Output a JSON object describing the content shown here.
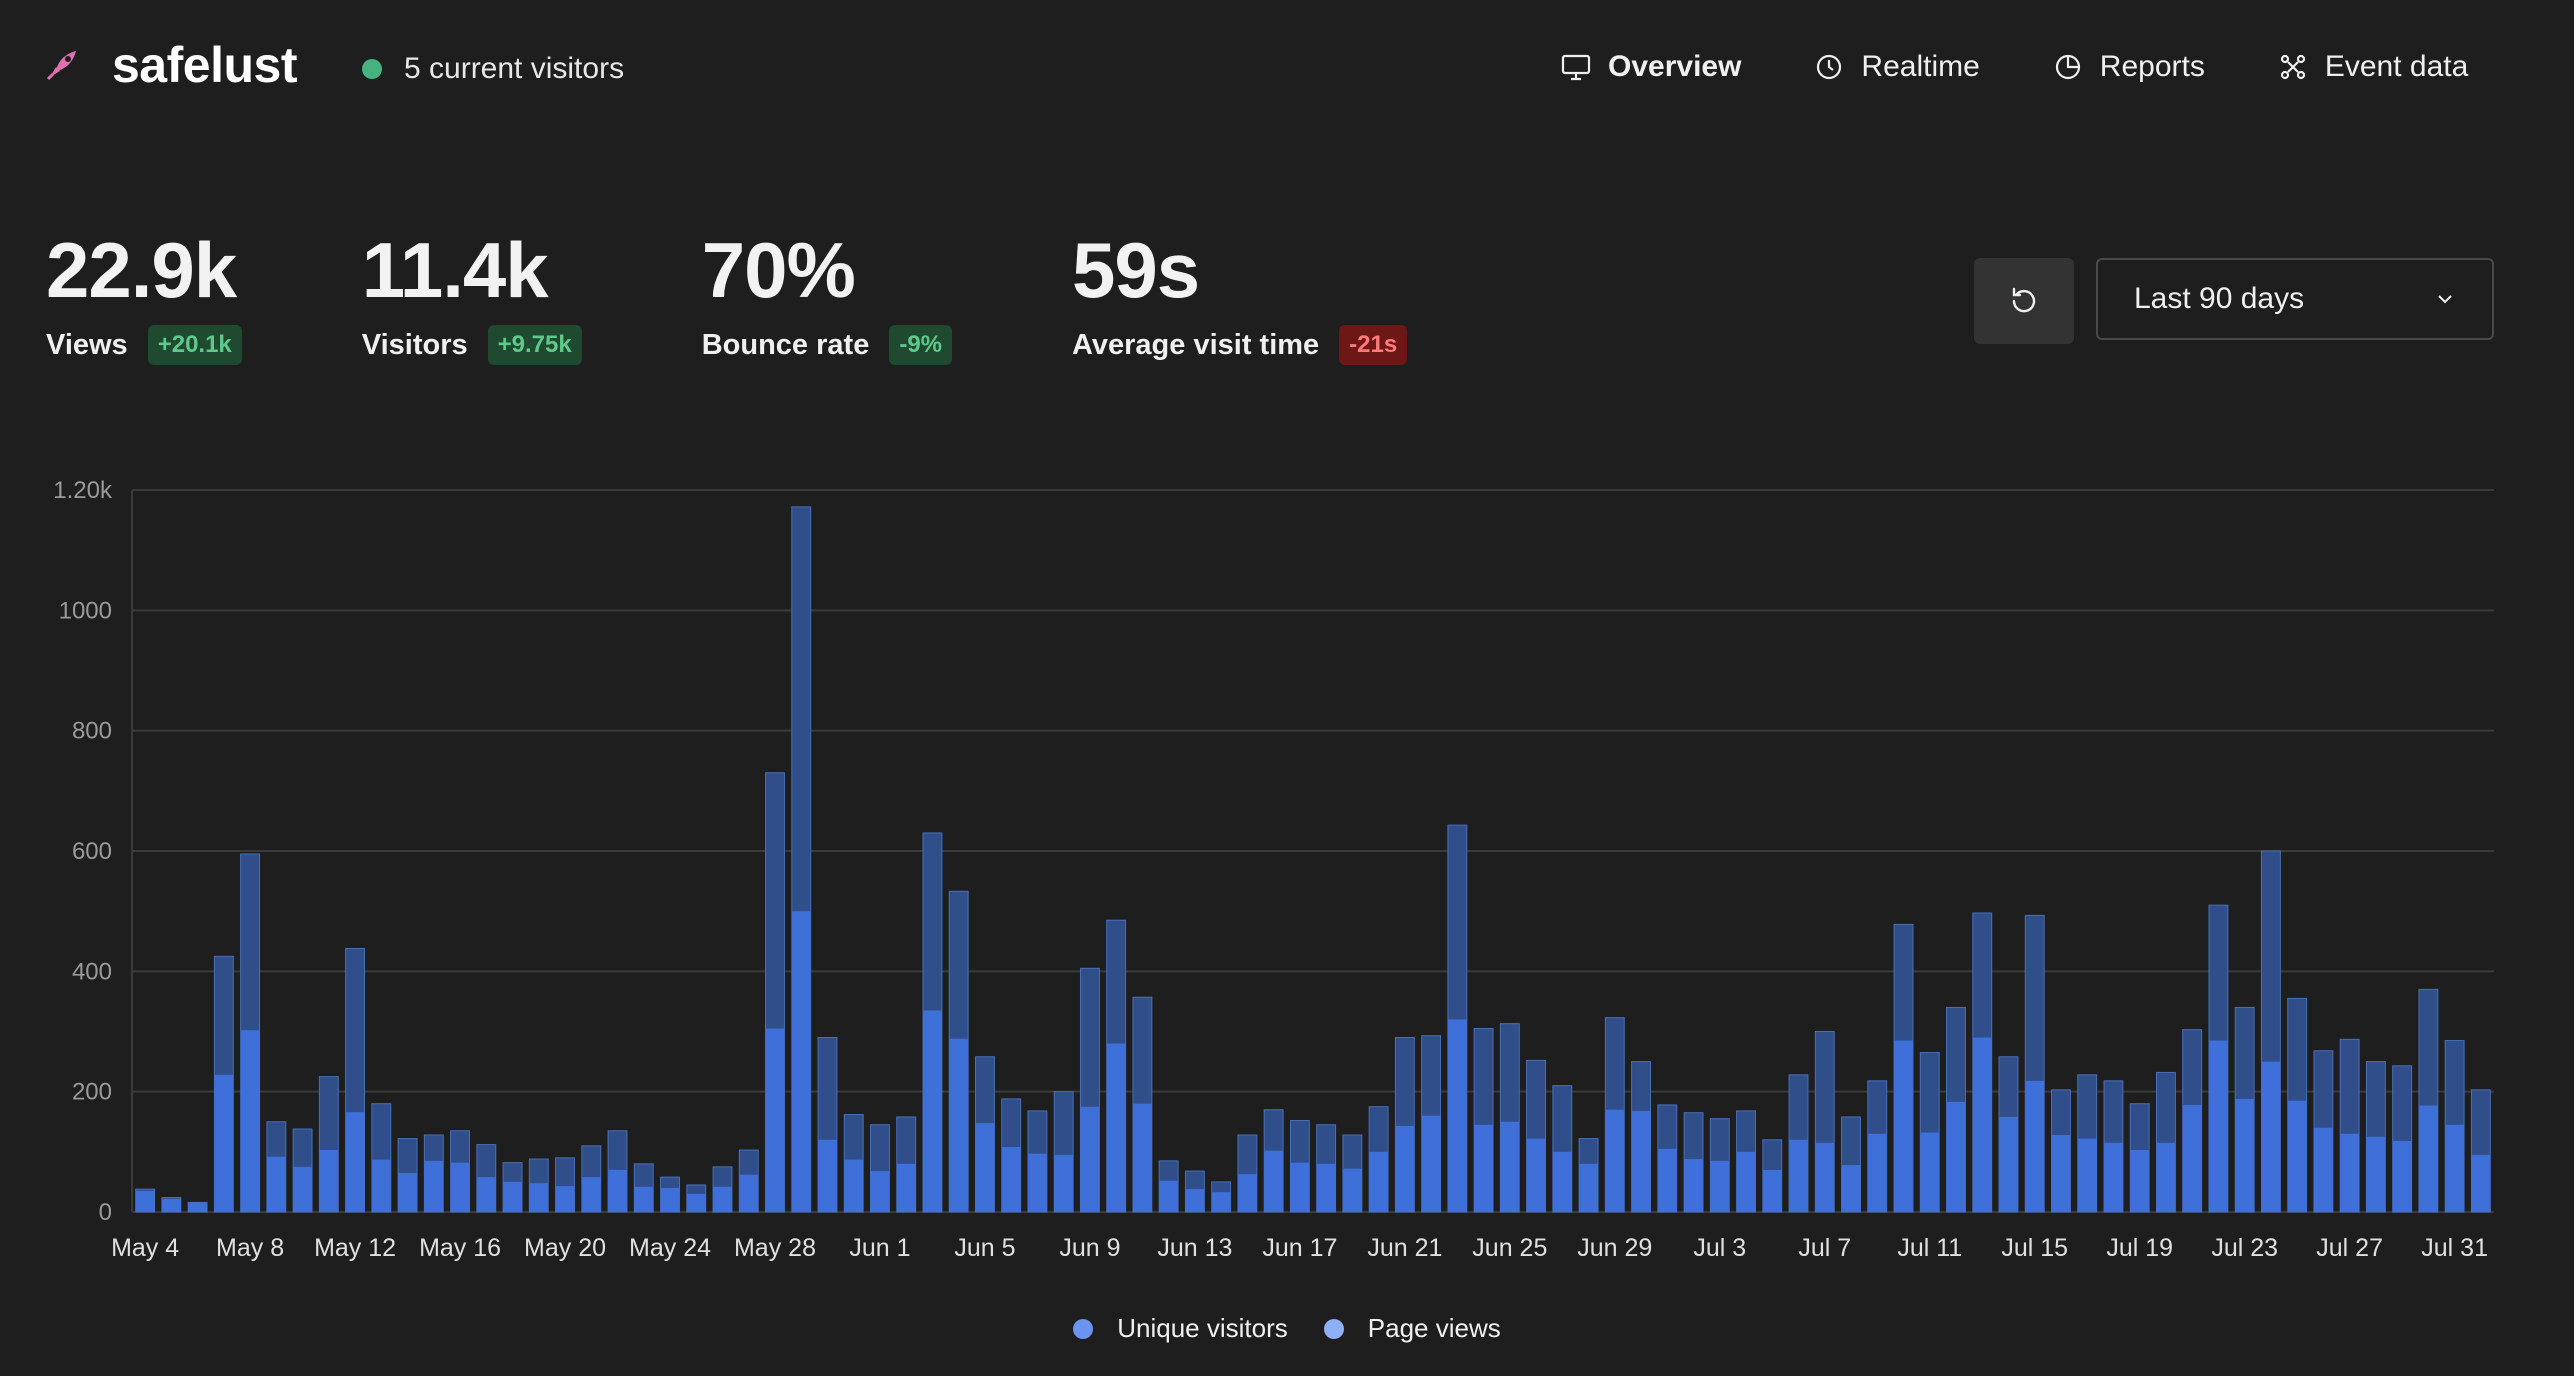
{
  "header": {
    "site_name": "safelust",
    "current_visitors": "5 current visitors",
    "nav": [
      {
        "label": "Overview",
        "icon": "monitor-icon",
        "active": true
      },
      {
        "label": "Realtime",
        "icon": "clock-icon",
        "active": false
      },
      {
        "label": "Reports",
        "icon": "pie-chart-icon",
        "active": false
      },
      {
        "label": "Event data",
        "icon": "nodes-icon",
        "active": false
      }
    ]
  },
  "metrics": [
    {
      "value": "22.9k",
      "label": "Views",
      "change": "+20.1k",
      "trend": "positive"
    },
    {
      "value": "11.4k",
      "label": "Visitors",
      "change": "+9.75k",
      "trend": "positive"
    },
    {
      "value": "70%",
      "label": "Bounce rate",
      "change": "-9%",
      "trend": "positive"
    },
    {
      "value": "59s",
      "label": "Average visit time",
      "change": "-21s",
      "trend": "negative"
    }
  ],
  "controls": {
    "refresh_icon": "refresh-icon",
    "date_range": "Last 90 days"
  },
  "colors": {
    "background": "#1e1e1e",
    "unique_visitors": "#3f6fd8",
    "page_views": "#2f4e8a",
    "positive_badge": "#1f4a2f",
    "negative_badge": "#6e1717",
    "live_dot": "#44b37e"
  },
  "chart_data": {
    "type": "bar",
    "stacked_overlay": true,
    "ylim": [
      0,
      1200
    ],
    "yticks": [
      "0",
      "200",
      "400",
      "600",
      "800",
      "1000",
      "1.20k"
    ],
    "xtick_labels": [
      "May 4",
      "May 8",
      "May 12",
      "May 16",
      "May 20",
      "May 24",
      "May 28",
      "Jun 1",
      "Jun 5",
      "Jun 9",
      "Jun 13",
      "Jun 17",
      "Jun 21",
      "Jun 25",
      "Jun 29",
      "Jul 3",
      "Jul 7",
      "Jul 11",
      "Jul 15",
      "Jul 19",
      "Jul 23",
      "Jul 27",
      "Jul 31"
    ],
    "categories": [
      "May 4",
      "May 5",
      "May 6",
      "May 7",
      "May 8",
      "May 9",
      "May 10",
      "May 11",
      "May 12",
      "May 13",
      "May 14",
      "May 15",
      "May 16",
      "May 17",
      "May 18",
      "May 19",
      "May 20",
      "May 21",
      "May 22",
      "May 23",
      "May 24",
      "May 25",
      "May 26",
      "May 27",
      "May 28",
      "May 29",
      "May 30",
      "May 31",
      "Jun 1",
      "Jun 2",
      "Jun 3",
      "Jun 4",
      "Jun 5",
      "Jun 6",
      "Jun 7",
      "Jun 8",
      "Jun 9",
      "Jun 10",
      "Jun 11",
      "Jun 12",
      "Jun 13",
      "Jun 14",
      "Jun 15",
      "Jun 16",
      "Jun 17",
      "Jun 18",
      "Jun 19",
      "Jun 20",
      "Jun 21",
      "Jun 22",
      "Jun 23",
      "Jun 24",
      "Jun 25",
      "Jun 26",
      "Jun 27",
      "Jun 28",
      "Jun 29",
      "Jun 30",
      "Jul 1",
      "Jul 2",
      "Jul 3",
      "Jul 4",
      "Jul 5",
      "Jul 6",
      "Jul 7",
      "Jul 8",
      "Jul 9",
      "Jul 10",
      "Jul 11",
      "Jul 12",
      "Jul 13",
      "Jul 14",
      "Jul 15",
      "Jul 16",
      "Jul 17",
      "Jul 18",
      "Jul 19",
      "Jul 20",
      "Jul 21",
      "Jul 22",
      "Jul 23",
      "Jul 24",
      "Jul 25",
      "Jul 26",
      "Jul 27",
      "Jul 28",
      "Jul 29",
      "Jul 30",
      "Jul 31",
      "Aug 1"
    ],
    "series": [
      {
        "name": "Unique visitors",
        "color": "#3f6fd8",
        "values": [
          35,
          22,
          15,
          228,
          302,
          92,
          75,
          103,
          166,
          87,
          65,
          85,
          82,
          58,
          50,
          48,
          43,
          58,
          70,
          42,
          40,
          30,
          42,
          62,
          305,
          500,
          120,
          87,
          68,
          80,
          335,
          288,
          148,
          108,
          97,
          95,
          175,
          280,
          180,
          52,
          38,
          33,
          63,
          102,
          82,
          80,
          72,
          100,
          143,
          160,
          320,
          145,
          150,
          122,
          100,
          80,
          170,
          168,
          105,
          88,
          85,
          100,
          70,
          120,
          115,
          78,
          130,
          285,
          132,
          183,
          290,
          158,
          218,
          128,
          122,
          115,
          103,
          115,
          178,
          285,
          188,
          250,
          185,
          140,
          130,
          125,
          118,
          177,
          145,
          95
        ]
      },
      {
        "name": "Page views",
        "color": "#2f4e8a",
        "values": [
          38,
          24,
          16,
          425,
          595,
          150,
          138,
          225,
          438,
          180,
          122,
          128,
          135,
          112,
          82,
          88,
          90,
          110,
          135,
          80,
          58,
          45,
          75,
          103,
          730,
          1172,
          290,
          162,
          145,
          158,
          630,
          533,
          258,
          188,
          168,
          200,
          405,
          485,
          357,
          85,
          68,
          50,
          128,
          170,
          152,
          145,
          128,
          175,
          290,
          293,
          643,
          305,
          313,
          252,
          210,
          122,
          323,
          250,
          178,
          165,
          155,
          168,
          120,
          228,
          300,
          158,
          218,
          478,
          265,
          340,
          497,
          258,
          493,
          203,
          228,
          218,
          180,
          232,
          303,
          510,
          340,
          600,
          355,
          268,
          287,
          250,
          243,
          370,
          285,
          203
        ]
      }
    ]
  },
  "legend": [
    {
      "label": "Unique visitors",
      "color": "#6b94f0"
    },
    {
      "label": "Page views",
      "color": "#8fb0f5"
    }
  ]
}
